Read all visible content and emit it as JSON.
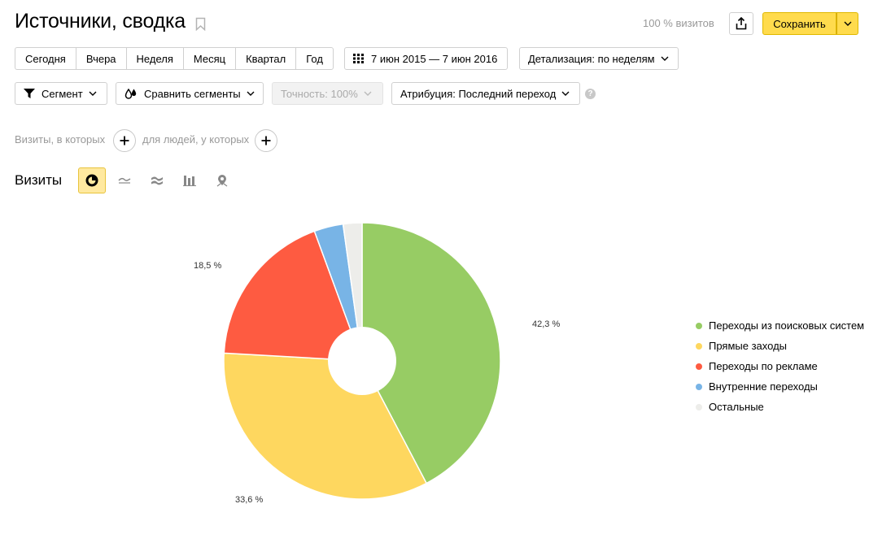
{
  "header": {
    "title": "Источники, сводка",
    "visits_pct": "100 % визитов",
    "save_label": "Сохранить"
  },
  "period": {
    "items": [
      "Сегодня",
      "Вчера",
      "Неделя",
      "Месяц",
      "Квартал",
      "Год"
    ],
    "date_range": "7 июн 2015 — 7 июн 2016",
    "detail": "Детализация: по неделям"
  },
  "filters": {
    "segment": "Сегмент",
    "compare": "Сравнить сегменты",
    "accuracy": "Точность: 100%",
    "attribution": "Атрибуция: Последний переход",
    "help": "?",
    "visits_where": "Визиты, в которых",
    "people_where": "для людей, у которых"
  },
  "report": {
    "title": "Визиты",
    "view_icons": [
      "pie-chart-icon",
      "line-chart-icon",
      "area-chart-icon",
      "bar-chart-icon",
      "map-pin-icon"
    ]
  },
  "chart_data": {
    "type": "pie",
    "donut": true,
    "start_at_top": true,
    "direction": "clockwise",
    "series": [
      {
        "name": "Переходы из поисковых систем",
        "value": 42.3,
        "label": "42,3 %",
        "color": "#97cc64"
      },
      {
        "name": "Прямые заходы",
        "value": 33.6,
        "label": "33,6 %",
        "color": "#fed75f"
      },
      {
        "name": "Переходы по рекламе",
        "value": 18.5,
        "label": "18,5 %",
        "color": "#fe5b41"
      },
      {
        "name": "Внутренние переходы",
        "value": 3.4,
        "label": "",
        "color": "#78b4e6"
      },
      {
        "name": "Остальные",
        "value": 2.2,
        "label": "",
        "color": "#ededea"
      }
    ],
    "legend_position": "right"
  }
}
